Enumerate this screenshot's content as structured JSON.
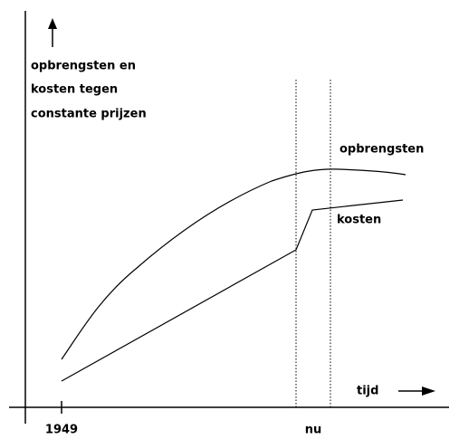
{
  "diagram": {
    "y_label": [
      "opbrengsten en",
      "kosten tegen",
      "constante prijzen"
    ],
    "curve_labels": {
      "revenue": "opbrengsten",
      "costs": "kosten"
    },
    "x_label": "tijd",
    "x_marks": {
      "start": "1949",
      "now": "nu"
    }
  }
}
